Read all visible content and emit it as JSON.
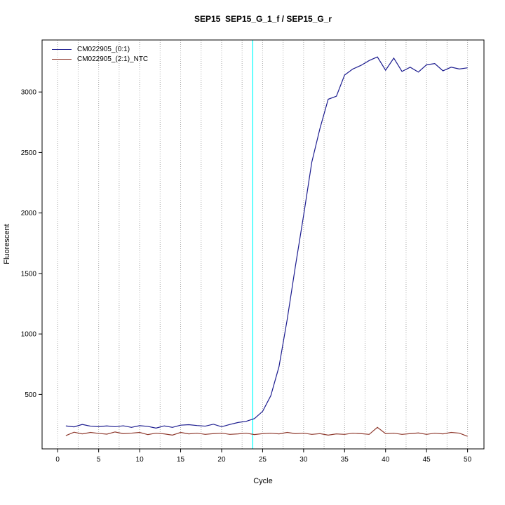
{
  "chart_data": {
    "type": "line",
    "title": "SEP15  SEP15_G_1_f / SEP15_G_r",
    "xlabel": "Cycle",
    "ylabel": "Fluorescent",
    "xlim": [
      -1.9,
      52
    ],
    "ylim": [
      50,
      3430
    ],
    "x_ticks": [
      0,
      5,
      10,
      15,
      20,
      25,
      30,
      35,
      40,
      45,
      50
    ],
    "y_ticks": [
      500,
      1000,
      1500,
      2000,
      2500,
      3000
    ],
    "grid": {
      "vertical_start": 0,
      "vertical_end": 50,
      "vertical_step": 2.5,
      "color": "#aaaaaa"
    },
    "threshold_line": {
      "x": 23.8,
      "color": "#00ffff"
    },
    "legend_position": "top-left",
    "x": [
      1,
      2,
      3,
      4,
      5,
      6,
      7,
      8,
      9,
      10,
      11,
      12,
      13,
      14,
      15,
      16,
      17,
      18,
      19,
      20,
      21,
      22,
      23,
      24,
      25,
      26,
      27,
      28,
      29,
      30,
      31,
      32,
      33,
      34,
      35,
      36,
      37,
      38,
      39,
      40,
      41,
      42,
      43,
      44,
      45,
      46,
      47,
      48,
      49,
      50
    ],
    "series": [
      {
        "name": "CM022905_(0:1)",
        "color": "#1c1c8f",
        "values": [
          240,
          232,
          252,
          238,
          234,
          240,
          233,
          241,
          228,
          242,
          236,
          222,
          240,
          228,
          246,
          250,
          243,
          238,
          254,
          233,
          252,
          268,
          278,
          300,
          360,
          490,
          730,
          1120,
          1560,
          1980,
          2420,
          2700,
          2940,
          2965,
          3140,
          3190,
          3220,
          3260,
          3290,
          3180,
          3280,
          3170,
          3205,
          3165,
          3225,
          3235,
          3175,
          3205,
          3190,
          3200
        ]
      },
      {
        "name": "CM022905_(2:1)_NTC",
        "color": "#8f3a2e",
        "values": [
          160,
          188,
          174,
          186,
          178,
          172,
          190,
          176,
          180,
          186,
          168,
          180,
          174,
          164,
          186,
          174,
          180,
          170,
          176,
          180,
          170,
          174,
          180,
          168,
          176,
          180,
          174,
          186,
          176,
          180,
          170,
          176,
          164,
          174,
          170,
          180,
          176,
          170,
          228,
          176,
          180,
          170,
          176,
          182,
          170,
          180,
          174,
          186,
          180,
          154
        ]
      }
    ]
  }
}
